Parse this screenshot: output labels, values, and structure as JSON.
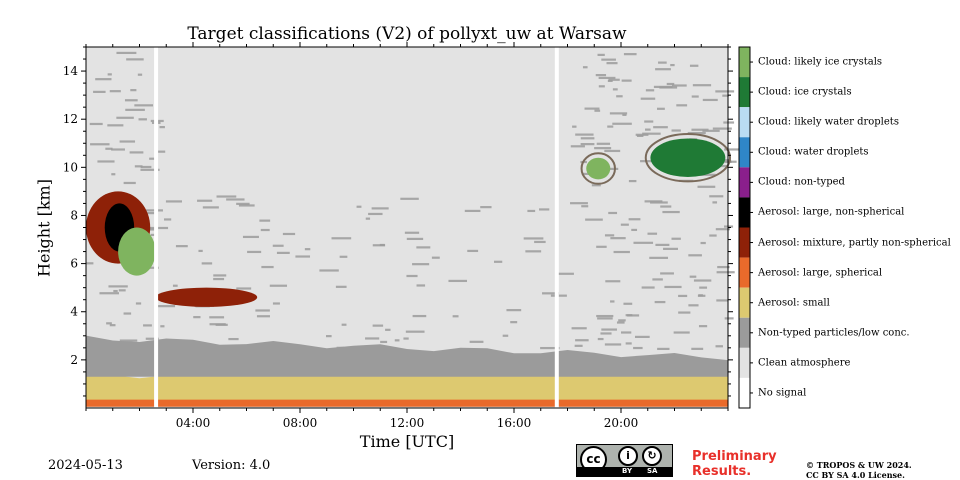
{
  "chart_data": {
    "type": "heatmap",
    "title": "Target classifications (V2) of pollyxt_uw at Warsaw",
    "xlabel": "Time [UTC]",
    "ylabel": "Height [km]",
    "x_unit": "hours UTC",
    "xlim": [
      0,
      24
    ],
    "ylim": [
      0,
      15
    ],
    "xticks": [
      {
        "value": 4,
        "label": "04:00"
      },
      {
        "value": 8,
        "label": "08:00"
      },
      {
        "value": 12,
        "label": "12:00"
      },
      {
        "value": 16,
        "label": "16:00"
      },
      {
        "value": 20,
        "label": "20:00"
      }
    ],
    "yticks": [
      2,
      4,
      6,
      8,
      10,
      12,
      14
    ],
    "classes": [
      {
        "label": "Cloud: likely ice crystals",
        "color": "#7fb45f"
      },
      {
        "label": "Cloud: ice crystals",
        "color": "#1f7a35"
      },
      {
        "label": "Cloud: likely water droplets",
        "color": "#b9dcf3"
      },
      {
        "label": "Cloud: water droplets",
        "color": "#2f86c8"
      },
      {
        "label": "Cloud: non-typed",
        "color": "#8a1f8c"
      },
      {
        "label": "Aerosol: large, non-spherical",
        "color": "#000000"
      },
      {
        "label": "Aerosol: mixture, partly non-spherical",
        "color": "#8e2108"
      },
      {
        "label": "Aerosol: large, spherical",
        "color": "#e96a2b"
      },
      {
        "label": "Aerosol: small",
        "color": "#ddc970"
      },
      {
        "label": "Non-typed particles/low conc.",
        "color": "#9b9b9b"
      },
      {
        "label": "Clean atmosphere",
        "color": "#e3e3e3"
      },
      {
        "label": "No signal",
        "color": "#ffffff"
      }
    ],
    "no_signal_gaps_utc": [
      2.62,
      17.6
    ],
    "regions": [
      {
        "class": "Aerosol: large, spherical",
        "from": 0,
        "to": 24,
        "bottom": 0.05,
        "top_start": 0.35,
        "top_end": 1.7
      },
      {
        "class": "Aerosol: small",
        "from": 0,
        "to": 24,
        "bottom": 0.35,
        "top_start": 1.3,
        "top_end": 1.9
      },
      {
        "class": "Non-typed particles/low conc.",
        "from": 0,
        "to": 24,
        "bottom": 1.3,
        "top_start": 2.9,
        "top_end": 2.1
      },
      {
        "class": "Aerosol: mixture, partly non-spherical",
        "from": 0,
        "to": 2.4,
        "bottom": 6.0,
        "top": 9.0
      },
      {
        "class": "Aerosol: large, non-spherical",
        "from": 0.7,
        "to": 1.8,
        "bottom": 6.5,
        "top": 8.5
      },
      {
        "class": "Cloud: likely ice crystals",
        "from": 1.2,
        "to": 2.6,
        "bottom": 5.5,
        "top": 7.5
      },
      {
        "class": "Aerosol: mixture, partly non-spherical",
        "from": 2.6,
        "to": 6.4,
        "bottom": 4.2,
        "top": 5.0
      },
      {
        "class": "Cloud: likely ice crystals",
        "from": 18.7,
        "to": 19.6,
        "bottom": 9.5,
        "top": 10.4
      },
      {
        "class": "Cloud: ice crystals",
        "from": 21.1,
        "to": 23.9,
        "bottom": 9.6,
        "top": 11.2
      }
    ]
  },
  "footer": {
    "date": "2024-05-13",
    "version": "Version: 4.0",
    "preliminary": "Preliminary Results.",
    "license_line1": "© TROPOS & UW 2024.",
    "license_line2": "CC BY SA 4.0 License.",
    "badge_by": "BY",
    "badge_sa": "SA"
  }
}
